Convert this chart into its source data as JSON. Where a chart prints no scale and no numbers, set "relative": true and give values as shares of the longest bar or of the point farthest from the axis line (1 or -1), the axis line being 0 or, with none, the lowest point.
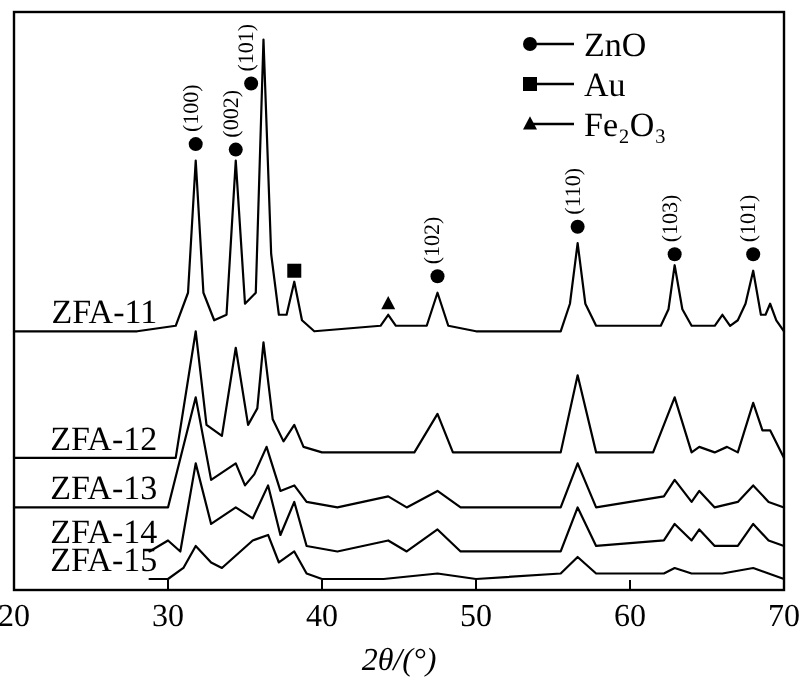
{
  "chart_data": {
    "type": "line",
    "relative": true,
    "xlabel": "2θ/(°)",
    "xlim": [
      20,
      70
    ],
    "xticks": [
      20,
      30,
      40,
      50,
      60,
      70
    ],
    "ylim": [
      0,
      1.05
    ],
    "grid": false,
    "legend": "top right",
    "tick_labels": "x",
    "series": [
      {
        "name": "ZFA-11",
        "color": "#000000",
        "x": [
          20,
          28,
          30.5,
          31.3,
          31.8,
          32.3,
          33,
          33.8,
          34.4,
          35,
          35.7,
          36.2,
          36.7,
          37.2,
          37.7,
          38.2,
          38.7,
          39.5,
          43.8,
          44.3,
          44.8,
          46.8,
          47.5,
          48.2,
          50,
          55.5,
          56.1,
          56.6,
          57.1,
          57.8,
          62,
          62.5,
          62.9,
          63.4,
          64,
          65.5,
          66,
          66.5,
          67,
          67.5,
          68,
          68.5,
          68.8,
          69.1,
          69.5,
          70
        ],
        "values": [
          0.47,
          0.47,
          0.48,
          0.54,
          0.78,
          0.54,
          0.49,
          0.5,
          0.78,
          0.52,
          0.54,
          1.0,
          0.61,
          0.5,
          0.5,
          0.56,
          0.49,
          0.47,
          0.48,
          0.5,
          0.48,
          0.48,
          0.54,
          0.48,
          0.47,
          0.47,
          0.52,
          0.63,
          0.52,
          0.48,
          0.48,
          0.51,
          0.59,
          0.51,
          0.48,
          0.48,
          0.5,
          0.48,
          0.49,
          0.52,
          0.58,
          0.5,
          0.5,
          0.52,
          0.49,
          0.47
        ]
      },
      {
        "name": "ZFA-12",
        "color": "#000000",
        "x": [
          20,
          30.5,
          31.8,
          32.5,
          33.5,
          34.4,
          35.2,
          35.8,
          36.2,
          36.8,
          37.5,
          38.2,
          38.8,
          40,
          44.3,
          46,
          47.5,
          48.5,
          55.5,
          56.6,
          57.8,
          61.5,
          62.9,
          64,
          64.5,
          65.5,
          66.3,
          67,
          68,
          68.6,
          69.1,
          70
        ],
        "values": [
          0.24,
          0.24,
          0.47,
          0.3,
          0.28,
          0.44,
          0.3,
          0.33,
          0.45,
          0.31,
          0.27,
          0.3,
          0.26,
          0.25,
          0.25,
          0.25,
          0.32,
          0.25,
          0.25,
          0.39,
          0.25,
          0.25,
          0.35,
          0.25,
          0.26,
          0.25,
          0.26,
          0.25,
          0.34,
          0.29,
          0.29,
          0.24
        ]
      },
      {
        "name": "ZFA-13",
        "color": "#000000",
        "x": [
          20,
          30,
          31.8,
          32.8,
          34.4,
          35,
          35.6,
          36.4,
          37.3,
          38.2,
          39,
          41,
          44.3,
          45.5,
          47.5,
          49,
          55.5,
          56.6,
          57.8,
          62.2,
          62.9,
          64,
          64.5,
          65.5,
          67,
          68,
          69,
          70
        ],
        "values": [
          0.15,
          0.15,
          0.35,
          0.2,
          0.23,
          0.19,
          0.21,
          0.26,
          0.18,
          0.19,
          0.16,
          0.15,
          0.17,
          0.15,
          0.18,
          0.15,
          0.15,
          0.23,
          0.15,
          0.17,
          0.2,
          0.16,
          0.18,
          0.15,
          0.16,
          0.19,
          0.16,
          0.15
        ]
      },
      {
        "name": "ZFA-14",
        "color": "#000000",
        "x": [
          28.8,
          30,
          30.8,
          31.8,
          32.8,
          34.4,
          35.5,
          36.5,
          37.3,
          38.2,
          39,
          41,
          44.3,
          45.5,
          47.5,
          49,
          55.5,
          56.6,
          57.8,
          62.2,
          62.9,
          64,
          64.5,
          65.5,
          67,
          68,
          69,
          70
        ],
        "values": [
          0.07,
          0.09,
          0.07,
          0.23,
          0.12,
          0.15,
          0.13,
          0.19,
          0.1,
          0.16,
          0.08,
          0.07,
          0.09,
          0.07,
          0.11,
          0.07,
          0.07,
          0.15,
          0.08,
          0.09,
          0.12,
          0.09,
          0.11,
          0.08,
          0.08,
          0.12,
          0.09,
          0.08
        ]
      },
      {
        "name": "ZFA-15",
        "color": "#000000",
        "x": [
          28.8,
          30,
          31,
          31.8,
          32.8,
          33.5,
          35.5,
          36.5,
          37.2,
          38.2,
          39,
          40,
          44,
          47.5,
          50,
          55.5,
          56.6,
          57.8,
          62.2,
          62.9,
          64,
          66,
          68,
          69,
          70
        ],
        "values": [
          0.02,
          0.02,
          0.04,
          0.08,
          0.05,
          0.04,
          0.09,
          0.1,
          0.05,
          0.07,
          0.03,
          0.02,
          0.02,
          0.03,
          0.02,
          0.03,
          0.06,
          0.03,
          0.03,
          0.04,
          0.03,
          0.03,
          0.04,
          0.03,
          0.02
        ]
      },
      {
        "name": "ZnO",
        "type": "scatter",
        "marker": "circle",
        "color": "#000000",
        "x": [
          31.8,
          34.4,
          35.4,
          47.5,
          56.6,
          62.9,
          68
        ],
        "values": [
          0.81,
          0.8,
          0.92,
          0.57,
          0.66,
          0.61,
          0.61
        ]
      },
      {
        "name": "Au",
        "type": "scatter",
        "marker": "square",
        "color": "#000000",
        "x": [
          38.2
        ],
        "values": [
          0.58
        ]
      },
      {
        "name": "Fe₂O₃",
        "type": "scatter",
        "marker": "triangle",
        "color": "#000000",
        "x": [
          44.3
        ],
        "values": [
          0.52
        ]
      }
    ],
    "annotations": [
      {
        "text": "(100)",
        "x": 31.8,
        "y": 0.81
      },
      {
        "text": "(002)",
        "x": 34.4,
        "y": 0.8
      },
      {
        "text": "(101)",
        "x": 35.4,
        "y": 0.92
      },
      {
        "text": "(102)",
        "x": 47.5,
        "y": 0.57
      },
      {
        "text": "(110)",
        "x": 56.6,
        "y": 0.66
      },
      {
        "text": "(103)",
        "x": 62.9,
        "y": 0.61
      },
      {
        "text": "(101)",
        "x": 68,
        "y": 0.61
      }
    ]
  }
}
